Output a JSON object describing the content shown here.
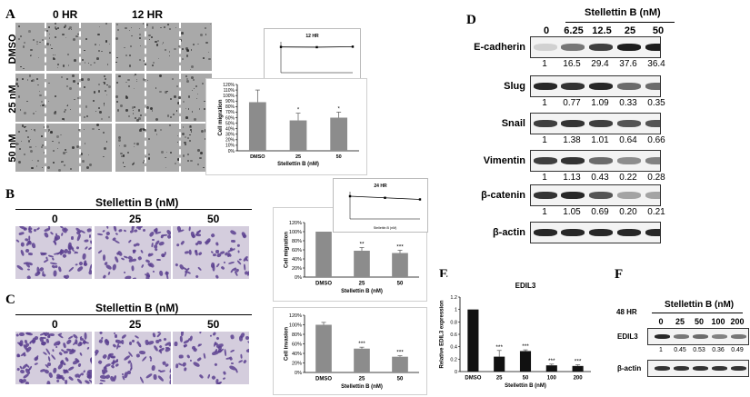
{
  "panels": {
    "A": {
      "label": "A",
      "col_headers": [
        "0 HR",
        "12 HR"
      ],
      "row_labels": [
        "DMSO",
        "25 nM",
        "50 nM"
      ],
      "inset_title": "12 HR",
      "inset_xlabel": "Stellettin B (nM)"
    },
    "B": {
      "label": "B",
      "title": "Stellettin B (nM)",
      "col_headers": [
        "0",
        "25",
        "50"
      ],
      "inset_title": "24 HR",
      "inset_xlabel": "Stellettin B (nM)"
    },
    "C": {
      "label": "C",
      "title": "Stellettin B (nM)",
      "col_headers": [
        "0",
        "25",
        "50"
      ]
    },
    "D": {
      "label": "D",
      "header": "Stellettin B    (nM)",
      "lanes": [
        "0",
        "6.25",
        "12.5",
        "25",
        "50"
      ],
      "blots": [
        {
          "name": "E-cadherin",
          "values": [
            "1",
            "16.5",
            "29.4",
            "37.6",
            "36.4"
          ]
        },
        {
          "name": "Slug",
          "values": [
            "1",
            "0.77",
            "1.09",
            "0.33",
            "0.35"
          ]
        },
        {
          "name": "Snail",
          "values": [
            "1",
            "1.38",
            "1.01",
            "0.64",
            "0.66"
          ]
        },
        {
          "name": "Vimentin",
          "values": [
            "1",
            "1.13",
            "0.43",
            "0.22",
            "0.28"
          ]
        },
        {
          "name": "β-catenin",
          "values": [
            "1",
            "1.05",
            "0.69",
            "0.20",
            "0.21"
          ]
        },
        {
          "name": "β-actin",
          "values": []
        }
      ]
    },
    "E": {
      "label": "E"
    },
    "F": {
      "label": "F",
      "time": "48 HR",
      "header": "Stellettin B    (nM)",
      "lanes": [
        "0",
        "25",
        "50",
        "100",
        "200"
      ],
      "blots": [
        {
          "name": "EDIL3",
          "values": [
            "1",
            "0.45",
            "0.53",
            "0.36",
            "0.49"
          ]
        },
        {
          "name": "β-actin",
          "values": []
        }
      ]
    }
  },
  "chart_data": [
    {
      "id": "A",
      "type": "bar",
      "categories": [
        "DMSO",
        "25",
        "50"
      ],
      "values": [
        88,
        55,
        60
      ],
      "errors": [
        22,
        13,
        10
      ],
      "annotations": [
        "",
        "*",
        "*"
      ],
      "ylabel": "Cell migration",
      "xlabel": "Stellettin B  (nM)",
      "yticks": [
        "0%",
        "10%",
        "20%",
        "30%",
        "40%",
        "50%",
        "60%",
        "70%",
        "80%",
        "90%",
        "100%",
        "110%",
        "120%"
      ],
      "ylim": [
        0,
        120
      ],
      "color": "#8c8c8c"
    },
    {
      "id": "A-inset",
      "type": "line",
      "title": "12 HR",
      "x": [
        0,
        25,
        50
      ],
      "values": [
        100,
        99,
        101
      ],
      "xlabel": "Stellettin B (nM)"
    },
    {
      "id": "B",
      "type": "bar",
      "categories": [
        "DMSO",
        "25",
        "50"
      ],
      "values": [
        100,
        58,
        53
      ],
      "errors": [
        0,
        7,
        6
      ],
      "annotations": [
        "",
        "**",
        "***"
      ],
      "ylabel": "Cell migration",
      "xlabel": "Stellettin B (nM)",
      "yticks": [
        "0%",
        "20%",
        "40%",
        "60%",
        "80%",
        "100%",
        "120%"
      ],
      "ylim": [
        0,
        120
      ],
      "color": "#8c8c8c"
    },
    {
      "id": "B-inset",
      "type": "line",
      "title": "24 HR",
      "x": [
        0,
        25,
        50
      ],
      "values": [
        100,
        93,
        86
      ],
      "xlabel": "Stellettin B (nM)"
    },
    {
      "id": "C",
      "type": "bar",
      "categories": [
        "DMSO",
        "25",
        "50"
      ],
      "values": [
        100,
        50,
        33
      ],
      "errors": [
        5,
        3,
        2
      ],
      "annotations": [
        "",
        "***",
        "***"
      ],
      "ylabel": "Cell invasion",
      "xlabel": "Stellettin B (nM)",
      "yticks": [
        "0%",
        "20%",
        "40%",
        "60%",
        "80%",
        "100%",
        "120%"
      ],
      "ylim": [
        0,
        120
      ],
      "color": "#8c8c8c"
    },
    {
      "id": "E",
      "type": "bar",
      "title": "EDIL3",
      "categories": [
        "DMSO",
        "25",
        "50",
        "100",
        "200"
      ],
      "values": [
        1.0,
        0.24,
        0.33,
        0.1,
        0.09
      ],
      "errors": [
        0,
        0.1,
        0.02,
        0.02,
        0.02
      ],
      "annotations": [
        "",
        "***",
        "***",
        "***",
        "***"
      ],
      "ylabel": "Relative EDIL3 expression",
      "xlabel": "Stellettin B (nM)",
      "yticks": [
        "0",
        "0.2",
        "0.4",
        "0.6",
        "0.8",
        "1",
        "1.2"
      ],
      "ylim": [
        0,
        1.2
      ],
      "color": "#111111"
    }
  ]
}
